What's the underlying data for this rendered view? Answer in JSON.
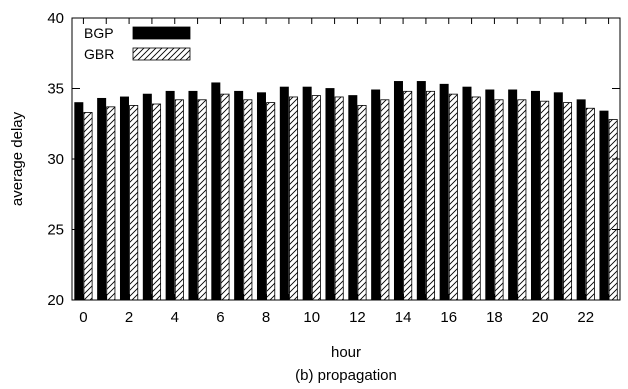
{
  "chart_data": {
    "type": "bar",
    "title": "",
    "caption": "(b) propagation",
    "xlabel": "hour",
    "ylabel": "average delay",
    "ylim": [
      20,
      40
    ],
    "yticks": [
      20,
      25,
      30,
      35,
      40
    ],
    "x_tick_labels": [
      "0",
      "2",
      "4",
      "6",
      "8",
      "10",
      "12",
      "14",
      "16",
      "18",
      "20",
      "22"
    ],
    "categories": [
      0,
      1,
      2,
      3,
      4,
      5,
      6,
      7,
      8,
      9,
      10,
      11,
      12,
      13,
      14,
      15,
      16,
      17,
      18,
      19,
      20,
      21,
      22,
      23
    ],
    "grid": false,
    "legend_position": "top-left",
    "series": [
      {
        "name": "BGP",
        "fill": "solid",
        "color": "#000000",
        "values": [
          34.0,
          34.3,
          34.4,
          34.6,
          34.8,
          34.8,
          35.4,
          34.8,
          34.7,
          35.1,
          35.1,
          35.0,
          34.5,
          34.9,
          35.5,
          35.5,
          35.3,
          35.1,
          34.9,
          34.9,
          34.8,
          34.7,
          34.2,
          33.4
        ]
      },
      {
        "name": "GBR",
        "fill": "hatch",
        "color": "#000000",
        "values": [
          33.3,
          33.7,
          33.8,
          33.9,
          34.2,
          34.2,
          34.6,
          34.2,
          34.0,
          34.4,
          34.5,
          34.4,
          33.8,
          34.2,
          34.8,
          34.8,
          34.6,
          34.4,
          34.2,
          34.2,
          34.1,
          34.0,
          33.6,
          32.8
        ]
      }
    ]
  }
}
